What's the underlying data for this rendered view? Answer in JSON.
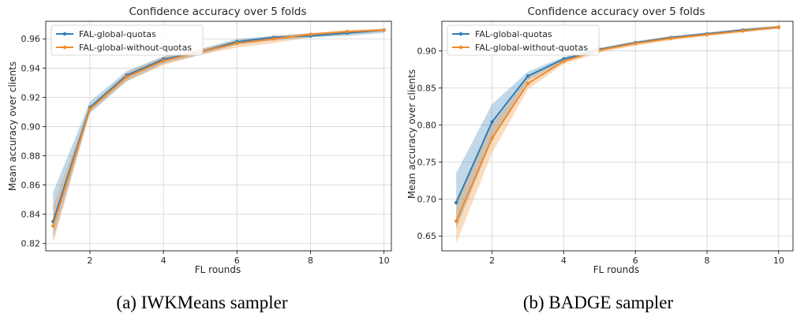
{
  "colors": {
    "series1": "#2e7db8",
    "series2": "#f08a2c",
    "grid": "#b0b0b0",
    "frame": "#000000"
  },
  "chart_data": [
    {
      "type": "line",
      "title": "Confidence accuracy over 5 folds",
      "xlabel": "FL rounds",
      "ylabel": "Mean accuracy over clients",
      "caption": "(a) IWKMeans sampler",
      "xlim": [
        0.8,
        10.2
      ],
      "ylim": [
        0.815,
        0.972
      ],
      "xticks": [
        2,
        4,
        6,
        8,
        10
      ],
      "yticks": [
        0.82,
        0.84,
        0.86,
        0.88,
        0.9,
        0.92,
        0.94,
        0.96
      ],
      "ytick_labels": [
        "0.82",
        "0.84",
        "0.86",
        "0.88",
        "0.90",
        "0.92",
        "0.94",
        "0.96"
      ],
      "grid": true,
      "legend_position": "top-left",
      "x": [
        1,
        2,
        3,
        4,
        5,
        6,
        7,
        8,
        9,
        10
      ],
      "series": [
        {
          "name": "FAL-global-quotas",
          "values": [
            0.835,
            0.913,
            0.935,
            0.946,
            0.951,
            0.958,
            0.961,
            0.962,
            0.964,
            0.966
          ],
          "band_low": [
            0.823,
            0.909,
            0.931,
            0.943,
            0.949,
            0.956,
            0.959,
            0.961,
            0.962,
            0.964
          ],
          "band_high": [
            0.855,
            0.917,
            0.938,
            0.948,
            0.953,
            0.96,
            0.962,
            0.964,
            0.965,
            0.967
          ]
        },
        {
          "name": "FAL-global-without-quotas",
          "values": [
            0.832,
            0.912,
            0.934,
            0.945,
            0.951,
            0.957,
            0.96,
            0.963,
            0.965,
            0.966
          ],
          "band_low": [
            0.82,
            0.91,
            0.931,
            0.942,
            0.949,
            0.954,
            0.957,
            0.961,
            0.963,
            0.965
          ],
          "band_high": [
            0.846,
            0.914,
            0.937,
            0.948,
            0.953,
            0.959,
            0.962,
            0.964,
            0.966,
            0.967
          ]
        }
      ]
    },
    {
      "type": "line",
      "title": "Confidence accuracy over 5 folds",
      "xlabel": "FL rounds",
      "ylabel": "Mean accuracy over clients",
      "caption": "(b) BADGE sampler",
      "xlim": [
        0.6,
        10.4
      ],
      "ylim": [
        0.63,
        0.94
      ],
      "xticks": [
        2,
        4,
        6,
        8,
        10
      ],
      "yticks": [
        0.65,
        0.7,
        0.75,
        0.8,
        0.85,
        0.9
      ],
      "ytick_labels": [
        "0.65",
        "0.70",
        "0.75",
        "0.80",
        "0.85",
        "0.90"
      ],
      "grid": true,
      "legend_position": "top-left",
      "x": [
        1,
        2,
        3,
        4,
        5,
        6,
        7,
        8,
        9,
        10
      ],
      "series": [
        {
          "name": "FAL-global-quotas",
          "values": [
            0.695,
            0.804,
            0.866,
            0.889,
            0.902,
            0.911,
            0.918,
            0.923,
            0.928,
            0.932
          ],
          "band_low": [
            0.66,
            0.78,
            0.86,
            0.886,
            0.9,
            0.909,
            0.916,
            0.921,
            0.926,
            0.93
          ],
          "band_high": [
            0.735,
            0.828,
            0.872,
            0.892,
            0.904,
            0.913,
            0.92,
            0.925,
            0.93,
            0.934
          ]
        },
        {
          "name": "FAL-global-without-quotas",
          "values": [
            0.67,
            0.782,
            0.856,
            0.886,
            0.901,
            0.91,
            0.917,
            0.922,
            0.927,
            0.932
          ],
          "band_low": [
            0.64,
            0.762,
            0.848,
            0.882,
            0.898,
            0.907,
            0.914,
            0.92,
            0.925,
            0.93
          ],
          "band_high": [
            0.7,
            0.8,
            0.864,
            0.89,
            0.904,
            0.913,
            0.92,
            0.925,
            0.93,
            0.934
          ]
        }
      ]
    }
  ]
}
